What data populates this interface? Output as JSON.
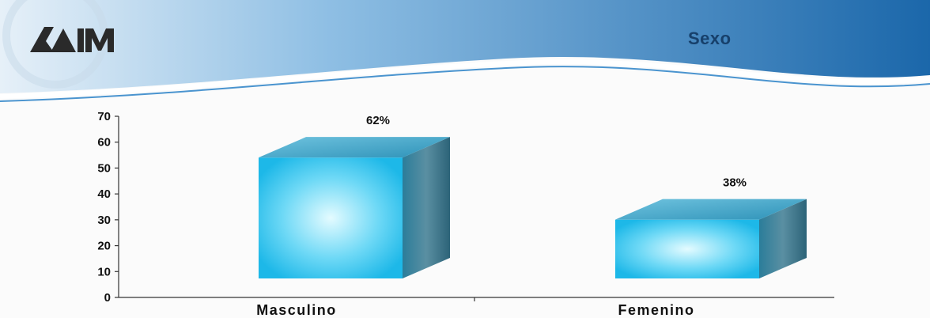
{
  "slide": {
    "title": "Sexo",
    "logo": {
      "text": "UAM",
      "icon": "uam-logo-icon"
    }
  },
  "colors": {
    "banner_dark": "#1f6fb0",
    "banner_light": "#dbeaf6",
    "bar_front": "#29c4ef",
    "bar_front_center": "#d8f6ff",
    "bar_top": "#3a9ec2",
    "bar_side": "#2e6e86"
  },
  "chart_data": {
    "type": "bar",
    "style": "3d",
    "title": "",
    "xlabel": "",
    "ylabel": "",
    "categories": [
      "Masculino",
      "Femenino"
    ],
    "values": [
      62,
      38
    ],
    "data_labels": [
      "62%",
      "38%"
    ],
    "ylim": [
      0,
      70
    ],
    "yticks": [
      0,
      10,
      20,
      30,
      40,
      50,
      60,
      70
    ],
    "grid": false,
    "legend": "none"
  }
}
